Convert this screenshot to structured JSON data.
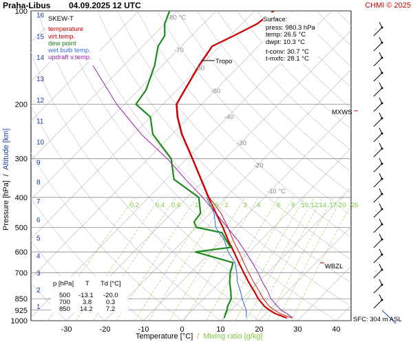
{
  "header": {
    "station": "Praha-Libus",
    "datetime": "04.09.2025 12 UTC",
    "credit": "CHMI © 2025"
  },
  "legend": {
    "title": "SKEW-T",
    "items": [
      {
        "label": "temperature",
        "color": "#cc0000"
      },
      {
        "label": "virt.temp.",
        "color": "#cc0000"
      },
      {
        "label": "dew point",
        "color": "#1a7a1a"
      },
      {
        "label": "wet bulb temp.",
        "color": "#3a6fd8"
      },
      {
        "label": "updraft v.temp.",
        "color": "#9a1fb0"
      }
    ]
  },
  "surface": {
    "title": "Surface:",
    "press": "press: 980.3 hPa",
    "temp": "temp: 26.5 °C",
    "dwpt": "dwpt: 10.3 °C",
    "tconv": "t-conv: 30.7 °C",
    "tmxfc": "t-mxfc: 28.1 °C"
  },
  "labels": {
    "tropo": "Tropo",
    "mxws": "MXWS",
    "wbzl": "WBZL",
    "sfc": "SFC: 304 m ASL"
  },
  "table": {
    "headers": [
      "p [hPa]",
      "T",
      "Td [°C]"
    ],
    "rows": [
      [
        "500",
        "-13.1",
        "-20.0"
      ],
      [
        "700",
        "3.8",
        "0.3"
      ],
      [
        "850",
        "14.2",
        "7.2"
      ]
    ]
  },
  "axes": {
    "xlabel": "Temperature [°C]",
    "xlabel_sep": "/",
    "xlabel_mix": "Mixing ratio [g/kg]",
    "ylabel_pressure": "Pressure [hPa]",
    "ylabel_sep": "/",
    "ylabel_alt": "Altitude [km]"
  },
  "chart_data": {
    "type": "line",
    "title": "SKEW-T",
    "x_ticks": [
      -30,
      -20,
      -10,
      0,
      10,
      20,
      30,
      40
    ],
    "xlim": [
      -35,
      42
    ],
    "pressure_ticks": [
      100,
      200,
      300,
      400,
      500,
      600,
      700,
      850,
      925,
      1000
    ],
    "ylim": [
      1000,
      100
    ],
    "altitude_ticks_km": [
      1,
      2,
      3,
      4,
      5,
      6,
      7,
      8,
      9,
      10,
      11,
      12,
      13,
      14,
      15,
      16
    ],
    "isotherm_labels": [
      "-80 °C",
      "-70",
      "-60",
      "-50",
      "-40",
      "-30",
      "-20",
      "-10 °C"
    ],
    "mixing_ratio_labels": [
      "0.2",
      "0.4",
      "0.6",
      "1",
      "1.5",
      "2",
      "3",
      "4",
      "6",
      "8",
      "10",
      "12",
      "14",
      "17",
      "20",
      "25"
    ],
    "series": [
      {
        "name": "temperature",
        "points": [
          [
            980,
            26.5
          ],
          [
            950,
            22.5
          ],
          [
            925,
            20.0
          ],
          [
            900,
            17.8
          ],
          [
            850,
            14.2
          ],
          [
            800,
            11.0
          ],
          [
            750,
            7.4
          ],
          [
            700,
            3.8
          ],
          [
            650,
            0.0
          ],
          [
            600,
            -4.0
          ],
          [
            550,
            -8.5
          ],
          [
            500,
            -13.1
          ],
          [
            450,
            -18.5
          ],
          [
            400,
            -24.5
          ],
          [
            350,
            -31.0
          ],
          [
            300,
            -38.5
          ],
          [
            250,
            -47.5
          ],
          [
            220,
            -53.0
          ],
          [
            200,
            -56.5
          ],
          [
            180,
            -58.0
          ],
          [
            150,
            -60.5
          ],
          [
            130,
            -62.0
          ],
          [
            120,
            -59.0
          ],
          [
            110,
            -56.0
          ],
          [
            100,
            -55.0
          ]
        ]
      },
      {
        "name": "dew point",
        "points": [
          [
            980,
            10.3
          ],
          [
            950,
            9.5
          ],
          [
            925,
            9.0
          ],
          [
            900,
            8.2
          ],
          [
            850,
            7.2
          ],
          [
            800,
            5.0
          ],
          [
            750,
            2.5
          ],
          [
            700,
            0.3
          ],
          [
            650,
            -1.5
          ],
          [
            600,
            -14.0
          ],
          [
            580,
            -6.0
          ],
          [
            550,
            -9.0
          ],
          [
            520,
            -12.0
          ],
          [
            500,
            -20.0
          ],
          [
            480,
            -22.0
          ],
          [
            450,
            -22.5
          ],
          [
            400,
            -27.0
          ],
          [
            350,
            -38.0
          ],
          [
            300,
            -44.0
          ],
          [
            250,
            -55.0
          ],
          [
            220,
            -60.0
          ],
          [
            200,
            -67.0
          ],
          [
            180,
            -68.0
          ],
          [
            150,
            -72.0
          ],
          [
            130,
            -76.0
          ],
          [
            120,
            -77.0
          ],
          [
            110,
            -80.0
          ],
          [
            100,
            -82.0
          ]
        ]
      },
      {
        "name": "wet bulb temp.",
        "points": [
          [
            980,
            16.0
          ],
          [
            925,
            14.0
          ],
          [
            850,
            10.0
          ],
          [
            800,
            7.5
          ],
          [
            750,
            4.5
          ],
          [
            700,
            2.0
          ],
          [
            650,
            -1.0
          ],
          [
            600,
            -5.5
          ],
          [
            550,
            -9.5
          ],
          [
            500,
            -15.0
          ],
          [
            450,
            -19.0
          ],
          [
            400,
            -25.0
          ]
        ]
      },
      {
        "name": "updraft v.temp.",
        "points": [
          [
            980,
            28.0
          ],
          [
            950,
            25.5
          ],
          [
            925,
            23.0
          ],
          [
            850,
            17.5
          ],
          [
            800,
            14.5
          ],
          [
            750,
            11.0
          ],
          [
            700,
            7.5
          ],
          [
            650,
            3.5
          ],
          [
            600,
            -1.0
          ],
          [
            550,
            -6.0
          ],
          [
            500,
            -12.0
          ],
          [
            450,
            -18.5
          ],
          [
            400,
            -26.0
          ],
          [
            350,
            -35.0
          ],
          [
            300,
            -45.0
          ],
          [
            250,
            -58.0
          ],
          [
            200,
            -72.0
          ],
          [
            150,
            -88.0
          ]
        ]
      }
    ]
  }
}
